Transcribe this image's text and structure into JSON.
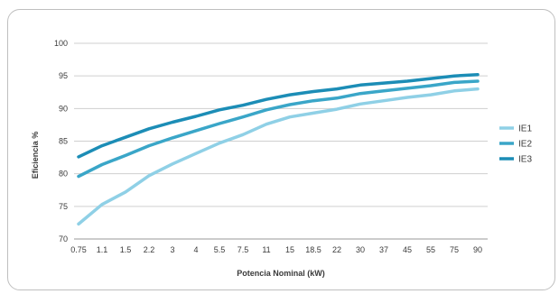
{
  "chart_data": {
    "type": "line",
    "title": "",
    "xlabel": "Potencia Nominal (kW)",
    "ylabel": "Eficiencia %",
    "categories": [
      "0.75",
      "1.1",
      "1.5",
      "2.2",
      "3",
      "4",
      "5.5",
      "7.5",
      "11",
      "15",
      "18.5",
      "22",
      "30",
      "37",
      "45",
      "55",
      "75",
      "90"
    ],
    "ylim": [
      70,
      100
    ],
    "yticks": [
      70,
      75,
      80,
      85,
      90,
      95,
      100
    ],
    "grid": true,
    "legend_position": "right",
    "series": [
      {
        "name": "IE1",
        "color": "#8fd0e6",
        "values": [
          72.3,
          75.3,
          77.2,
          79.7,
          81.5,
          83.1,
          84.7,
          86.0,
          87.6,
          88.7,
          89.3,
          89.9,
          90.7,
          91.2,
          91.7,
          92.1,
          92.7,
          93.0
        ]
      },
      {
        "name": "IE2",
        "color": "#3aa6c8",
        "values": [
          79.6,
          81.4,
          82.8,
          84.3,
          85.5,
          86.6,
          87.7,
          88.7,
          89.8,
          90.6,
          91.2,
          91.6,
          92.3,
          92.7,
          93.1,
          93.5,
          94.0,
          94.2
        ]
      },
      {
        "name": "IE3",
        "color": "#1c8db6",
        "values": [
          82.6,
          84.3,
          85.6,
          86.9,
          87.9,
          88.8,
          89.8,
          90.5,
          91.4,
          92.1,
          92.6,
          93.0,
          93.6,
          93.9,
          94.2,
          94.6,
          95.0,
          95.2
        ]
      }
    ]
  }
}
